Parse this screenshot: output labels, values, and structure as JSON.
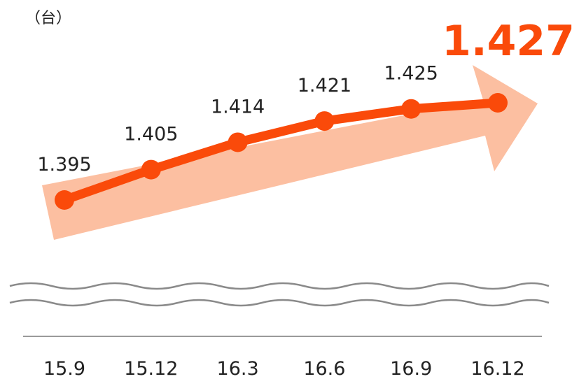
{
  "colors": {
    "line": "#fa4a0a",
    "arrow": "#fcbfa1",
    "wave": "#8a8a8a",
    "axis": "#9a9a9a",
    "highlight": "#fa4a0a"
  },
  "chart_data": {
    "type": "line",
    "unit_label": "（台）",
    "categories": [
      "15.9",
      "15.12",
      "16.3",
      "16.6",
      "16.9",
      "16.12"
    ],
    "value_labels": [
      "1.395",
      "1.405",
      "1.414",
      "1.421",
      "1.425",
      "1.427"
    ],
    "series": [
      {
        "values": [
          1.395,
          1.405,
          1.414,
          1.421,
          1.425,
          1.427
        ]
      }
    ],
    "axis_break": true,
    "grid": false,
    "legend": "none"
  }
}
